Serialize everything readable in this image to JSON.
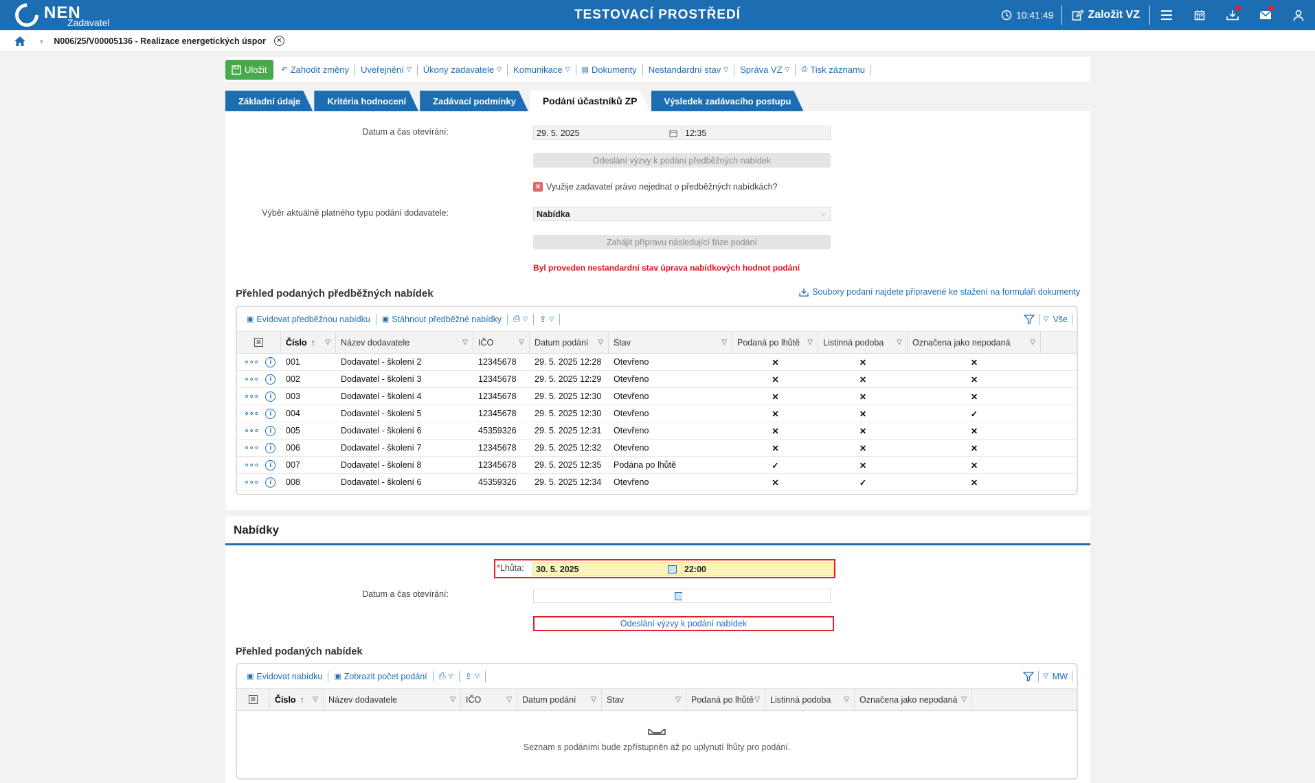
{
  "header": {
    "logo": "NEN",
    "logo_sub": "Zadavatel",
    "env": "TESTOVACÍ PROSTŘEDÍ",
    "time": "10:41:49",
    "create": "Založit VZ"
  },
  "crumb": {
    "title": "N006/25/V00005136 - Realizace energetických úspor"
  },
  "toolbar": {
    "save": "Uložit",
    "items": [
      "Zahodit změny",
      "Uveřejnění",
      "Úkony zadavatele",
      "Komunikace",
      "Dokumenty",
      "Nestandardní stav",
      "Správa VZ",
      "Tisk záznamu"
    ]
  },
  "tabs": [
    "Základní údaje",
    "Kritéria hodnocení",
    "Zadávací podmínky",
    "Podání účastníků ZP",
    "Výsledek zadávacího postupu"
  ],
  "form1": {
    "open_label": "Datum a čas otevírání:",
    "open_date": "29. 5. 2025",
    "open_time": "12:35",
    "send_btn": "Odeslání výzvy k podání předběžných nabídek",
    "checkbox_label": "Využije zadavatel právo nejednat o předběžných nabídkách?",
    "type_label": "Výběr aktuálně platného typu podání dodavatele:",
    "type_value": "Nabídka",
    "next_btn": "Zahájit přípravu následující fáze podání",
    "warning": "Byl proveden nestandardní stav úprava nabídkových hodnot podání"
  },
  "grid1": {
    "title": "Přehled podaných předběžných nabídek",
    "download_link": "Soubory podaní najdete připravené ke stažení na formuláři dokumenty",
    "tools": [
      "Evidovat předběžnou nabídku",
      "Stáhnout předběžné nabídky"
    ],
    "filter_label": "Vše",
    "columns": [
      "Číslo",
      "Název dodavatele",
      "IČO",
      "Datum podání",
      "Stav",
      "Podaná po lhůtě",
      "Listinná podoba",
      "Označena jako nepodaná"
    ],
    "rows": [
      {
        "no": "001",
        "name": "Dodavatel - školení 2",
        "ico": "12345678",
        "date": "29. 5. 2025 12:28",
        "state": "Otevřeno",
        "late": false,
        "paper": false,
        "unsub": false
      },
      {
        "no": "002",
        "name": "Dodavatel - školení 3",
        "ico": "12345678",
        "date": "29. 5. 2025 12:29",
        "state": "Otevřeno",
        "late": false,
        "paper": false,
        "unsub": false
      },
      {
        "no": "003",
        "name": "Dodavatel - školení 4",
        "ico": "12345678",
        "date": "29. 5. 2025 12:30",
        "state": "Otevřeno",
        "late": false,
        "paper": false,
        "unsub": false
      },
      {
        "no": "004",
        "name": "Dodavatel - školení 5",
        "ico": "12345678",
        "date": "29. 5. 2025 12:30",
        "state": "Otevřeno",
        "late": false,
        "paper": false,
        "unsub": true
      },
      {
        "no": "005",
        "name": "Dodavatel - školení 6",
        "ico": "45359326",
        "date": "29. 5. 2025 12:31",
        "state": "Otevřeno",
        "late": false,
        "paper": false,
        "unsub": false
      },
      {
        "no": "006",
        "name": "Dodavatel - školení 7",
        "ico": "12345678",
        "date": "29. 5. 2025 12:32",
        "state": "Otevřeno",
        "late": false,
        "paper": false,
        "unsub": false
      },
      {
        "no": "007",
        "name": "Dodavatel - školení 8",
        "ico": "12345678",
        "date": "29. 5. 2025 12:35",
        "state": "Podána po lhůtě",
        "late": true,
        "paper": false,
        "unsub": false
      },
      {
        "no": "008",
        "name": "Dodavatel - školení 6",
        "ico": "45359326",
        "date": "29. 5. 2025 12:34",
        "state": "Otevřeno",
        "late": false,
        "paper": true,
        "unsub": false
      }
    ]
  },
  "offers": {
    "title": "Nabídky",
    "deadline_label": "Lhůta:",
    "deadline_date": "30. 5. 2025",
    "deadline_time": "22:00",
    "open_label": "Datum a čas otevírání:",
    "send_btn": "Odeslání výzvy k podání nabídek"
  },
  "grid2": {
    "title": "Přehled podaných nabídek",
    "tools": [
      "Evidovat nabídku",
      "Zobrazit počet podání"
    ],
    "filter_label": "MW",
    "columns": [
      "Číslo",
      "Název dodavatele",
      "IČO",
      "Datum podání",
      "Stav",
      "Podaná po lhůtě",
      "Listinná podoba",
      "Označena jako nepodaná"
    ],
    "empty": "Seznam s podáními bude zpřístupněn až po uplynutí lhůty pro podání."
  }
}
